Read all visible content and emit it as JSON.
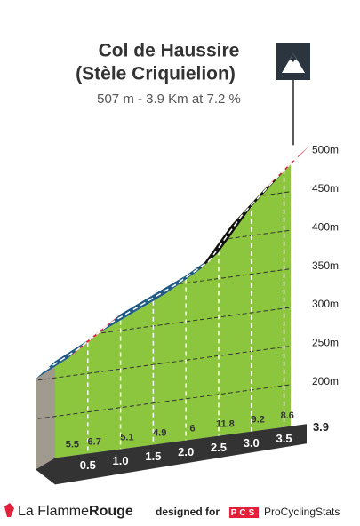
{
  "chart_data": {
    "type": "climb-profile",
    "title": "Col de Haussire",
    "subtitle": "(Stèle Criquielion)",
    "stats": "507 m - 3.9 Km at 7.2 %",
    "x": [
      0,
      0.5,
      1.0,
      1.5,
      2.0,
      2.5,
      3.0,
      3.5,
      3.9
    ],
    "x_labels": [
      "0.5",
      "1.0",
      "1.5",
      "2.0",
      "2.5",
      "3.0",
      "3.5",
      "3.9"
    ],
    "values": [
      227,
      254,
      288,
      313,
      338,
      368,
      427,
      473,
      507
    ],
    "gradients": [
      5.5,
      6.7,
      5.1,
      4.9,
      6.0,
      11.8,
      9.2,
      8.6
    ],
    "segment_colors": [
      "#1f5a85",
      "#e3203c",
      "#1f5a85",
      "#1f5a85",
      "#1f5a85",
      "#111111",
      "#111111",
      "#e3203c"
    ],
    "face_color": "#8cc63f",
    "xlim": [
      0,
      3.9
    ],
    "ylim": [
      140,
      520
    ],
    "yticks": [
      {
        "value": 200,
        "label": "200m"
      },
      {
        "value": 250,
        "label": "250m"
      },
      {
        "value": 300,
        "label": "300m"
      },
      {
        "value": 350,
        "label": "350m"
      },
      {
        "value": 400,
        "label": "400m"
      },
      {
        "value": 450,
        "label": "450m"
      },
      {
        "value": 500,
        "label": "500m"
      }
    ],
    "grid": true
  },
  "footer": {
    "brand_left": "La Flamme",
    "brand_right": "Rouge",
    "designed_for": "designed for",
    "pcs": "PCS",
    "pcs_name": "ProCyclingStats"
  }
}
